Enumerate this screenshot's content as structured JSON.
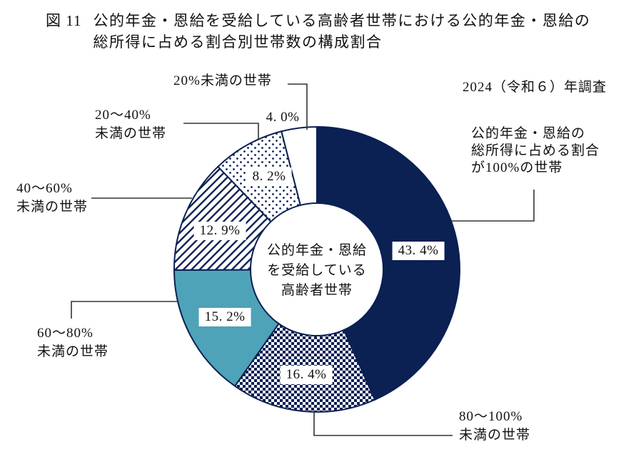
{
  "figure": {
    "number": "図 11",
    "title_line1": "公的年金・恩給を受給している高齢者世帯における公的年金・恩給の",
    "title_line2": "総所得に占める割合別世帯数の構成割合",
    "survey_note": "2024（令和６）年調査"
  },
  "colors": {
    "navy": "#0b2053",
    "teal": "#4ea3b8",
    "white": "#ffffff",
    "text": "#111111",
    "connector": "#333333"
  },
  "chart_data": {
    "type": "pie",
    "subtype": "donut",
    "title": "公的年金・恩給を受給している高齢者世帯における公的年金・恩給の総所得に占める割合別世帯数の構成割合",
    "start_angle_deg_from_top": 0,
    "direction": "clockwise",
    "center_label_lines": [
      "公的年金・恩給",
      "を受給している",
      "高齢者世帯"
    ],
    "segments": [
      {
        "id": "p100",
        "label": "公的年金・恩給の総所得に占める割合が100%の世帯",
        "value": 43.4,
        "display": "43. 4%",
        "fill": "navy-solid"
      },
      {
        "id": "b80_100",
        "label": "80～100%未満の世帯",
        "value": 16.4,
        "display": "16. 4%",
        "fill": "checker"
      },
      {
        "id": "b60_80",
        "label": "60～80%未満の世帯",
        "value": 15.2,
        "display": "15. 2%",
        "fill": "teal-solid"
      },
      {
        "id": "b40_60",
        "label": "40～60%未満の世帯",
        "value": 12.9,
        "display": "12. 9%",
        "fill": "diagonal-stripes"
      },
      {
        "id": "b20_40",
        "label": "20～40%未満の世帯",
        "value": 8.2,
        "display": "8. 2%",
        "fill": "dots"
      },
      {
        "id": "lt20",
        "label": "20%未満の世帯",
        "value": 4.0,
        "display": "4. 0%",
        "fill": "white-solid"
      }
    ]
  },
  "callouts": {
    "lt20": {
      "line1": "20%未満の世帯"
    },
    "b20_40": {
      "line1": "20～40%",
      "line2": "未満の世帯"
    },
    "b40_60": {
      "line1": "40～60%",
      "line2": "未満の世帯"
    },
    "b60_80": {
      "line1": "60～80%",
      "line2": "未満の世帯"
    },
    "b80_100": {
      "line1": "80～100%",
      "line2": "未満の世帯"
    },
    "p100": {
      "line1": "公的年金・恩給の",
      "line2": "総所得に占める割合",
      "line3": "が100%の世帯"
    }
  }
}
